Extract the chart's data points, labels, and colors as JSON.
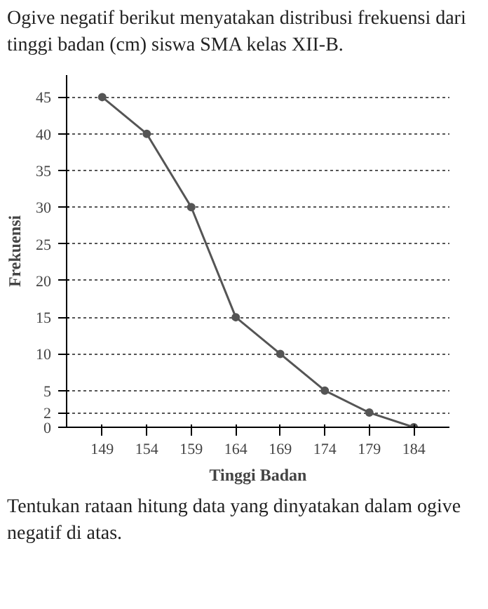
{
  "chart_data": {
    "type": "line",
    "title": "Ogive negatif berikut menyatakan distribusi frekuensi dari tinggi badan (cm) siswa SMA kelas XII-B.",
    "xlabel": "Tinggi Badan",
    "ylabel": "Frekuensi",
    "x": [
      149,
      154,
      159,
      164,
      169,
      174,
      179,
      184
    ],
    "series": [
      {
        "color": "#555555",
        "values": [
          45,
          40,
          30,
          15,
          10,
          5,
          2,
          0
        ]
      }
    ],
    "xlim": [
      145,
      188
    ],
    "ylim": [
      0,
      48
    ],
    "xticks": [
      149,
      154,
      159,
      164,
      169,
      174,
      179,
      184
    ],
    "yticks": [
      0,
      2,
      5,
      10,
      15,
      20,
      25,
      30,
      35,
      40,
      45
    ],
    "grid": "y",
    "marker": "circle",
    "line_style": "solid",
    "annotations": [
      "Tentukan rataan hitung data yang dinyatakan dalam ogive negatif di atas."
    ]
  }
}
